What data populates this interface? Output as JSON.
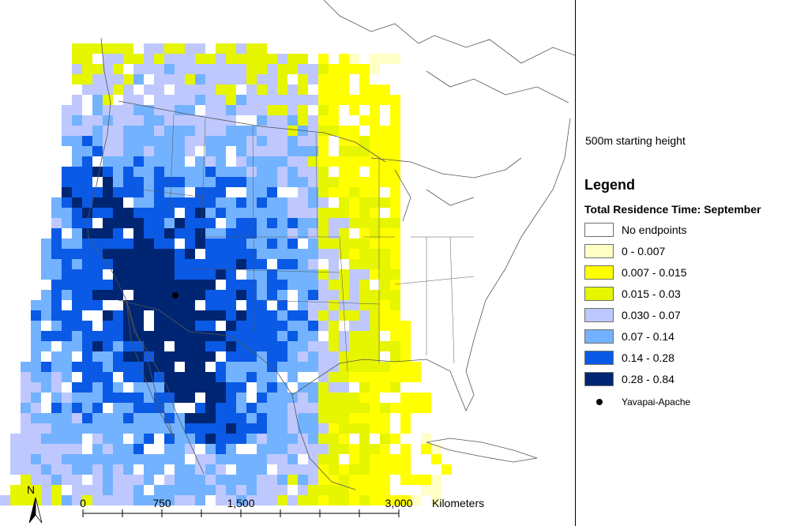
{
  "map": {
    "north_label": "N",
    "scale": {
      "ticks": [
        "0",
        "750",
        "1,500",
        "3,000"
      ],
      "unit": "Kilometers"
    },
    "site_marker": "Yavapai-Apache",
    "grid_colors": [
      "#ffffc6",
      "#ffff00",
      "#e6f500",
      "#bec8ff",
      "#73b2ff",
      "#0a5ae6",
      "#002673"
    ],
    "outline_color": "#555555"
  },
  "legend": {
    "subtitle": "500m starting height",
    "title": "Legend",
    "heading": "Total Residence Time: September",
    "classes": [
      {
        "label": "No endpoints",
        "color": "#ffffff"
      },
      {
        "label": "0 - 0.007",
        "color": "#ffffc6"
      },
      {
        "label": "0.007 - 0.015",
        "color": "#ffff00"
      },
      {
        "label": "0.015 - 0.03",
        "color": "#e6f500"
      },
      {
        "label": "0.030 - 0.07",
        "color": "#bec8ff"
      },
      {
        "label": "0.07 - 0.14",
        "color": "#73b2ff"
      },
      {
        "label": "0.14 - 0.28",
        "color": "#0a5ae6"
      },
      {
        "label": "0.28 - 0.84",
        "color": "#002673"
      }
    ],
    "point_label": "Yavapai-Apache",
    "point_icon": "filled-circle"
  }
}
